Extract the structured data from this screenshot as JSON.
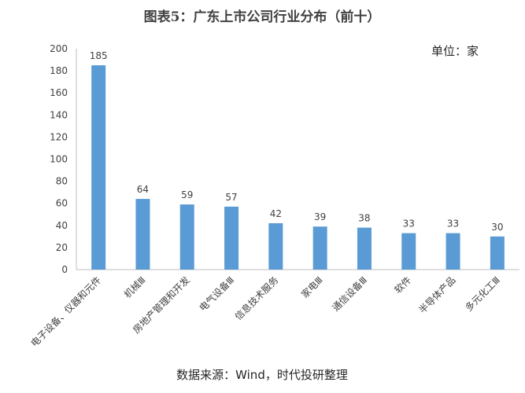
{
  "chart_data": {
    "type": "bar",
    "title": "图表5：广东上市公司行业分布（前十）",
    "unit_label": "单位：家",
    "source": "数据来源：Wind，时代投研整理",
    "categories": [
      "电子设备、仪器和元件",
      "机械Ⅲ",
      "房地产管理和开发",
      "电气设备Ⅲ",
      "信息技术服务",
      "家电Ⅲ",
      "通信设备Ⅲ",
      "软件",
      "半导体产品",
      "多元化工Ⅲ"
    ],
    "values": [
      185,
      64,
      59,
      57,
      42,
      39,
      38,
      33,
      33,
      30
    ],
    "ylim": [
      0,
      200
    ],
    "yticks": [
      0,
      20,
      40,
      60,
      80,
      100,
      120,
      140,
      160,
      180,
      200
    ],
    "bar_color": "#5b9bd5",
    "grid": false,
    "legend": "none"
  }
}
